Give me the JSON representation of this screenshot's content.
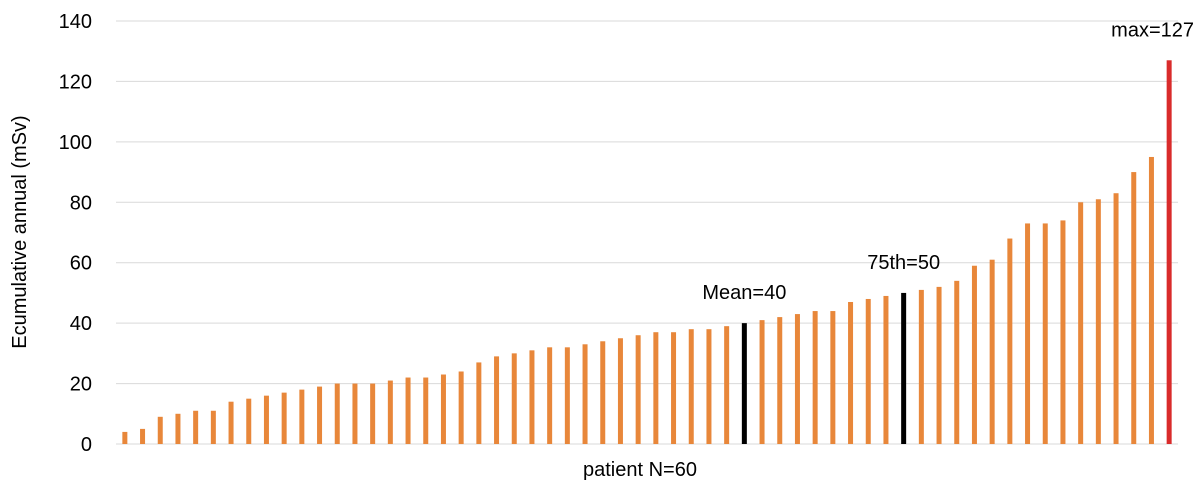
{
  "chart_data": {
    "type": "bar",
    "xlabel": "patient N=60",
    "ylabel": "Ecumulative annual (mSv)",
    "ylim": [
      0,
      140
    ],
    "yticks": [
      0,
      20,
      40,
      60,
      80,
      100,
      120,
      140
    ],
    "grid": true,
    "values": [
      4,
      5,
      9,
      10,
      11,
      11,
      14,
      15,
      16,
      17,
      18,
      19,
      20,
      20,
      20,
      21,
      22,
      22,
      23,
      24,
      27,
      29,
      30,
      31,
      32,
      32,
      33,
      34,
      35,
      36,
      37,
      37,
      38,
      38,
      39,
      40,
      41,
      42,
      43,
      44,
      44,
      47,
      48,
      49,
      50,
      51,
      52,
      54,
      59,
      61,
      68,
      73,
      73,
      74,
      80,
      81,
      83,
      90,
      95,
      127
    ],
    "colors": {
      "bar": "#e8873a",
      "highlight": "#000000",
      "max": "#d92b2b",
      "grid": "#d9d9d9"
    },
    "annotations": [
      {
        "label": "Mean=40",
        "index": 35,
        "color": "#000000"
      },
      {
        "label": "75th=50",
        "index": 44,
        "color": "#000000"
      },
      {
        "label": "max=127",
        "index": 59,
        "color": "#d92b2b"
      }
    ]
  }
}
